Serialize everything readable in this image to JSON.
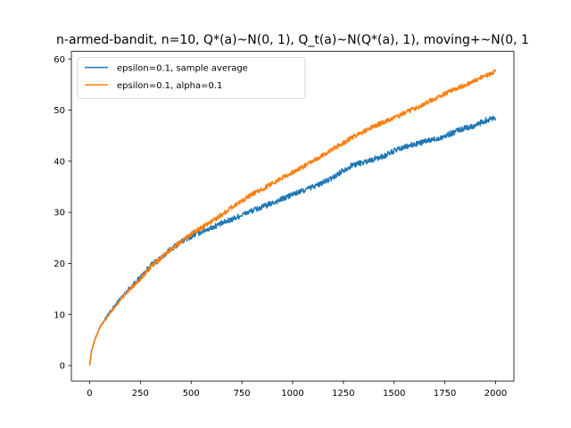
{
  "chart_data": {
    "type": "line",
    "title": "n-armed-bandit, n=10, Q*(a)~N(0, 1), Q_t(a)~N(Q*(a), 1), moving+~N(0, 1",
    "xlabel": "",
    "ylabel": "",
    "xlim": [
      -90,
      2090
    ],
    "ylim": [
      -3,
      61.5
    ],
    "xticks": [
      0,
      250,
      500,
      750,
      1000,
      1250,
      1500,
      1750,
      2000
    ],
    "yticks": [
      0,
      10,
      20,
      30,
      40,
      50,
      60
    ],
    "grid": false,
    "legend_position": "top-left",
    "series": [
      {
        "name": "epsilon=0.1, sample average",
        "color": "#1f77b4",
        "noise": 0.55,
        "x": [
          0,
          10,
          25,
          50,
          100,
          150,
          200,
          250,
          300,
          350,
          400,
          450,
          500,
          550,
          600,
          650,
          700,
          750,
          800,
          850,
          900,
          950,
          1000,
          1050,
          1100,
          1150,
          1200,
          1250,
          1300,
          1350,
          1400,
          1450,
          1500,
          1550,
          1600,
          1650,
          1700,
          1750,
          1800,
          1850,
          1900,
          1950,
          2000
        ],
        "y": [
          0,
          3,
          5,
          7.5,
          10.5,
          13,
          15.3,
          17.2,
          19.5,
          21,
          22.8,
          24.2,
          25.3,
          26.2,
          27,
          27.8,
          28.6,
          29.5,
          30.3,
          31,
          31.8,
          32.6,
          33.5,
          34.2,
          35,
          35.8,
          36.8,
          38.3,
          39.3,
          39.8,
          40.4,
          41,
          42,
          42.7,
          43.3,
          43.8,
          44.3,
          44.9,
          45.8,
          46.5,
          47,
          48,
          48.6
        ]
      },
      {
        "name": "epsilon=0.1, alpha=0.1",
        "color": "#ff7f0e",
        "noise": 0.45,
        "x": [
          0,
          10,
          25,
          50,
          100,
          150,
          200,
          250,
          300,
          350,
          400,
          450,
          500,
          550,
          600,
          650,
          700,
          750,
          800,
          850,
          900,
          950,
          1000,
          1050,
          1100,
          1150,
          1200,
          1250,
          1300,
          1350,
          1400,
          1450,
          1500,
          1550,
          1600,
          1650,
          1700,
          1750,
          1800,
          1850,
          1900,
          1950,
          2000
        ],
        "y": [
          0,
          3,
          5,
          7.5,
          10.2,
          12.8,
          15,
          17,
          19.2,
          21,
          22.7,
          24.3,
          25.8,
          27,
          28.2,
          29.5,
          31,
          32.3,
          33.5,
          34.5,
          35.7,
          36.8,
          37.8,
          38.9,
          40,
          41.2,
          42.4,
          43.6,
          44.8,
          45.8,
          46.8,
          47.7,
          48.5,
          49.4,
          50.3,
          51.3,
          52.2,
          53.2,
          54.1,
          54.9,
          55.8,
          56.8,
          57.5
        ]
      }
    ]
  }
}
